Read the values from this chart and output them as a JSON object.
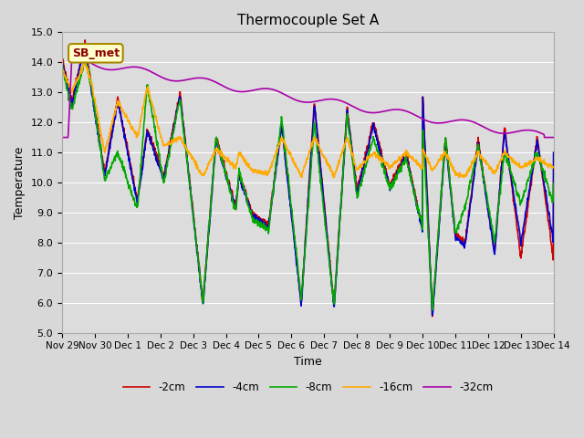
{
  "title": "Thermocouple Set A",
  "xlabel": "Time",
  "ylabel": "Temperature",
  "ylim": [
    5.0,
    15.0
  ],
  "yticks": [
    5.0,
    6.0,
    7.0,
    8.0,
    9.0,
    10.0,
    11.0,
    12.0,
    13.0,
    14.0,
    15.0
  ],
  "fig_facecolor": "#d8d8d8",
  "ax_facecolor": "#dcdcdc",
  "grid_color": "white",
  "annotation_text": "SB_met",
  "annotation_bg": "#ffffcc",
  "annotation_border": "#aa8800",
  "legend_entries": [
    "-2cm",
    "-4cm",
    "-8cm",
    "-16cm",
    "-32cm"
  ],
  "line_colors": [
    "#cc0000",
    "#0000cc",
    "#00aa00",
    "#ffaa00",
    "#aa00aa"
  ],
  "line_width": 1.2,
  "x_tick_labels": [
    "Nov 29",
    "Nov 30",
    "Dec 1",
    "Dec 2",
    "Dec 3",
    "Dec 4",
    "Dec 5",
    "Dec 6",
    "Dec 7",
    "Dec 8",
    "Dec 9",
    "Dec 10",
    "Dec 11",
    "Dec 12",
    "Dec 13",
    "Dec 14"
  ]
}
